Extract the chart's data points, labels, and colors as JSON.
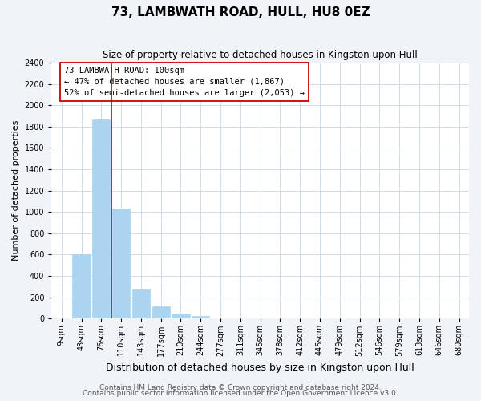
{
  "title": "73, LAMBWATH ROAD, HULL, HU8 0EZ",
  "subtitle": "Size of property relative to detached houses in Kingston upon Hull",
  "xlabel": "Distribution of detached houses by size in Kingston upon Hull",
  "ylabel": "Number of detached properties",
  "bar_labels": [
    "9sqm",
    "43sqm",
    "76sqm",
    "110sqm",
    "143sqm",
    "177sqm",
    "210sqm",
    "244sqm",
    "277sqm",
    "311sqm",
    "345sqm",
    "378sqm",
    "412sqm",
    "445sqm",
    "479sqm",
    "512sqm",
    "546sqm",
    "579sqm",
    "613sqm",
    "646sqm",
    "680sqm"
  ],
  "bar_values": [
    0,
    600,
    1870,
    1030,
    280,
    115,
    45,
    25,
    0,
    0,
    0,
    0,
    0,
    0,
    0,
    0,
    0,
    0,
    0,
    0,
    0
  ],
  "bar_color": "#aad4f0",
  "bar_edge_color": "#aad4f0",
  "vline_color": "#cc0000",
  "ylim": [
    0,
    2400
  ],
  "yticks": [
    0,
    200,
    400,
    600,
    800,
    1000,
    1200,
    1400,
    1600,
    1800,
    2000,
    2200,
    2400
  ],
  "annotation_title": "73 LAMBWATH ROAD: 100sqm",
  "annotation_line1": "← 47% of detached houses are smaller (1,867)",
  "annotation_line2": "52% of semi-detached houses are larger (2,053) →",
  "annotation_box_color": "#ffffff",
  "annotation_box_edge": "#cc0000",
  "footer_line1": "Contains HM Land Registry data © Crown copyright and database right 2024.",
  "footer_line2": "Contains public sector information licensed under the Open Government Licence v3.0.",
  "background_color": "#f0f4f8",
  "plot_bg_color": "#ffffff",
  "grid_color": "#d0dce8",
  "title_fontsize": 11,
  "subtitle_fontsize": 8.5,
  "xlabel_fontsize": 9,
  "ylabel_fontsize": 8,
  "tick_fontsize": 7,
  "footer_fontsize": 6.5,
  "ann_fontsize": 7.5
}
